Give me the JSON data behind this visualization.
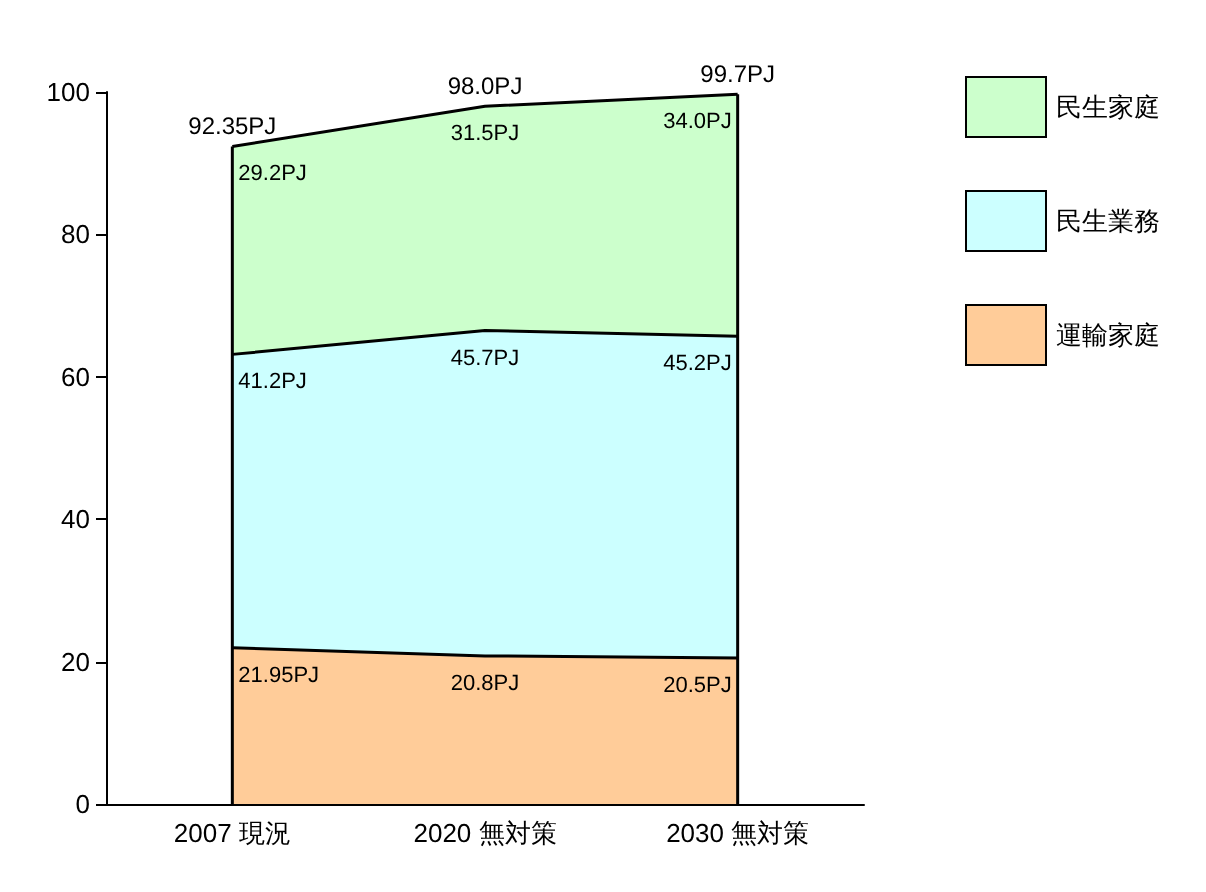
{
  "chart_data": {
    "type": "area",
    "stacked": true,
    "categories": [
      "2007 現況",
      "2020 無対策",
      "2030 無対策"
    ],
    "series": [
      {
        "name": "運輸家庭",
        "color": "#ffcc99",
        "values": [
          21.95,
          20.8,
          20.5
        ],
        "value_labels": [
          "21.95PJ",
          "20.8PJ",
          "20.5PJ"
        ]
      },
      {
        "name": "民生業務",
        "color": "#ccffff",
        "values": [
          41.2,
          45.7,
          45.2
        ],
        "value_labels": [
          "41.2PJ",
          "45.7PJ",
          "45.2PJ"
        ]
      },
      {
        "name": "民生家庭",
        "color": "#ccffcc",
        "values": [
          29.2,
          31.5,
          34.0
        ],
        "value_labels": [
          "29.2PJ",
          "31.5PJ",
          "34.0PJ"
        ]
      }
    ],
    "totals": [
      "92.35PJ",
      "98.0PJ",
      "99.7PJ"
    ],
    "ylim": [
      0,
      100
    ],
    "yticks": [
      0,
      20,
      40,
      60,
      80,
      100
    ],
    "grid": false,
    "legend": "right",
    "marker": "none"
  }
}
